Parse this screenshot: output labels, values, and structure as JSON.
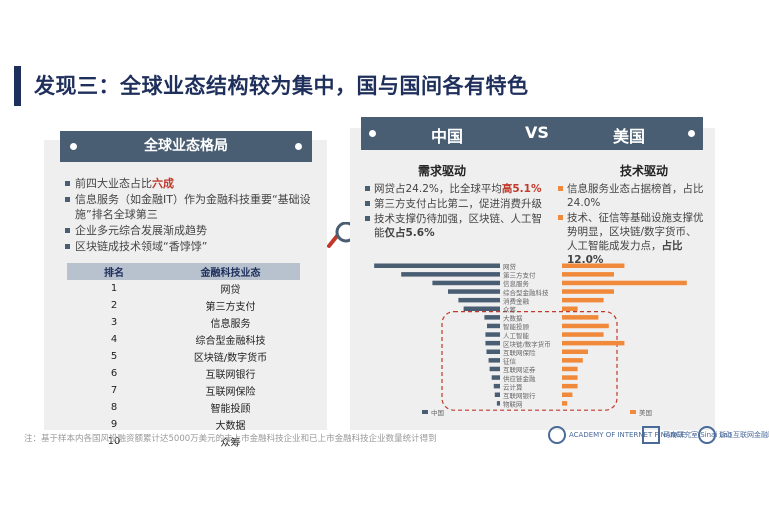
{
  "title": "发现三：全球业态结构较为集中，国与国间各有特色",
  "left": {
    "header": "全球业态格局",
    "bullets": [
      {
        "pre": "前四大业态占比",
        "hl": "六成"
      },
      {
        "pre": "信息服务（如金融IT）作为金融科技重要“基础设施”排名全球第三",
        "hl": ""
      },
      {
        "pre": "企业多元综合发展渐成趋势",
        "hl": ""
      },
      {
        "pre": "区块链成技术领域“香饽饽”",
        "hl": ""
      }
    ],
    "table": {
      "headers": [
        "排名",
        "金融科技业态"
      ],
      "rows": [
        [
          "1",
          "网贷"
        ],
        [
          "2",
          "第三方支付"
        ],
        [
          "3",
          "信息服务"
        ],
        [
          "4",
          "综合型金融科技"
        ],
        [
          "5",
          "区块链/数字货币"
        ],
        [
          "6",
          "互联网银行"
        ],
        [
          "7",
          "互联网保险"
        ],
        [
          "8",
          "智能投顾"
        ],
        [
          "9",
          "大数据"
        ],
        [
          "10",
          "众筹"
        ]
      ]
    }
  },
  "right": {
    "china": "中国",
    "vs": "VS",
    "usa": "美国",
    "china_driver": "需求驱动",
    "usa_driver": "技术驱动",
    "china_bullets": [
      {
        "pre": "网贷占24.2%，比全球平均",
        "hl": "高5.1%"
      },
      {
        "pre": "第三方支付占比第二，促进消费升级",
        "hl": ""
      },
      {
        "pre": "技术支撑仍待加强，区块链、人工智能",
        "hl": "仅占5.6%"
      }
    ],
    "usa_bullets": [
      {
        "pre": "信息服务业态占据榜首，占比24.0%",
        "hl": ""
      },
      {
        "pre": "技术、征信等基础设施支撑优势明显，区块链/数字货币、人工智能成发力点，",
        "hl": "占比12.0%"
      }
    ]
  },
  "chart_data": {
    "type": "bar",
    "categories": [
      "网贷",
      "第三方支付",
      "信息服务",
      "综合型金融科技",
      "消费金融",
      "众筹",
      "大数据",
      "智能投顾",
      "人工智能",
      "区块链/数字货币",
      "互联网保险",
      "征信",
      "互联网证券",
      "供应链金融",
      "云计算",
      "互联网银行",
      "物联网"
    ],
    "series": [
      {
        "name": "中国",
        "color": "#4a5e73",
        "values": [
          24.2,
          19,
          13,
          10,
          8,
          7,
          3,
          2.5,
          2.8,
          2.8,
          2.6,
          2.2,
          2.0,
          1.6,
          1.2,
          1.0,
          0.6
        ]
      },
      {
        "name": "美国",
        "color": "#f08a3a",
        "values": [
          12,
          10,
          24,
          10,
          8,
          3,
          7,
          9,
          8,
          12,
          5,
          4,
          3,
          3,
          3,
          2,
          1
        ]
      }
    ]
  },
  "footnote": "注：基于样本内各国风投融资额累计达5000万美元的未上市金融科技企业和已上市金融科技企业数量统计得到",
  "logos": [
    "ACADEMY OF INTERNET FINANCE",
    "司南研究室 Sinai Lab",
    "浙江互联网金融联合会"
  ]
}
